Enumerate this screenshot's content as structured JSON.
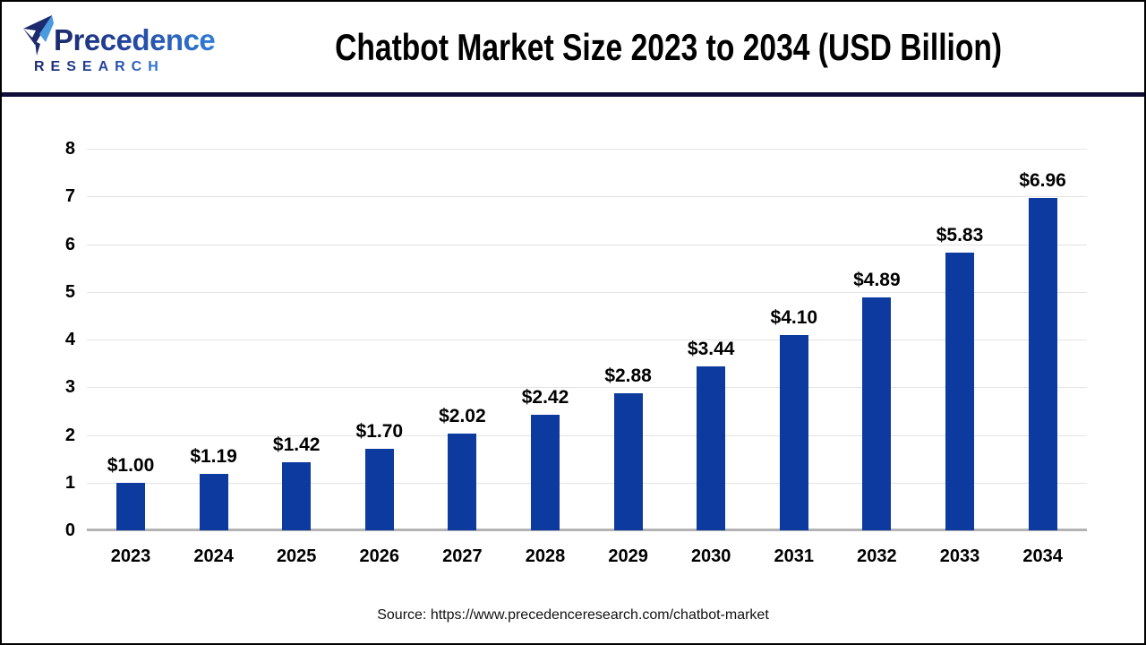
{
  "header": {
    "logo_line1": "Precedence",
    "logo_line2": "RESEARCH",
    "title": "Chatbot Market Size 2023 to 2034 (USD Billion)"
  },
  "chart_data": {
    "type": "bar",
    "title": "Chatbot Market Size 2023 to 2034 (USD Billion)",
    "unit": "USD Billion",
    "categories": [
      "2023",
      "2024",
      "2025",
      "2026",
      "2027",
      "2028",
      "2029",
      "2030",
      "2031",
      "2032",
      "2033",
      "2034"
    ],
    "values": [
      1.0,
      1.19,
      1.42,
      1.7,
      2.02,
      2.42,
      2.88,
      3.44,
      4.1,
      4.89,
      5.83,
      6.96
    ],
    "value_labels": [
      "$1.00",
      "$1.19",
      "$1.42",
      "$1.70",
      "$2.02",
      "$2.42",
      "$2.88",
      "$3.44",
      "$4.10",
      "$4.89",
      "$5.83",
      "$6.96"
    ],
    "xlabel": "",
    "ylabel": "",
    "ylim": [
      0,
      8
    ],
    "yticks": [
      0,
      1,
      2,
      3,
      4,
      5,
      6,
      7,
      8
    ],
    "grid": true,
    "legend_position": "none",
    "bar_color": "#0c3a9e",
    "gridline_color": "#e3e3e3",
    "baseline_color": "#b3b3b3"
  },
  "footer": {
    "source": "Source: https://www.precedenceresearch.com/chatbot-market"
  },
  "colors": {
    "header_rule": "#0e0e38",
    "logo_dark": "#1c2a6e",
    "logo_light": "#2f7cd8",
    "title_text": "#000000",
    "frame_border": "#000000"
  }
}
